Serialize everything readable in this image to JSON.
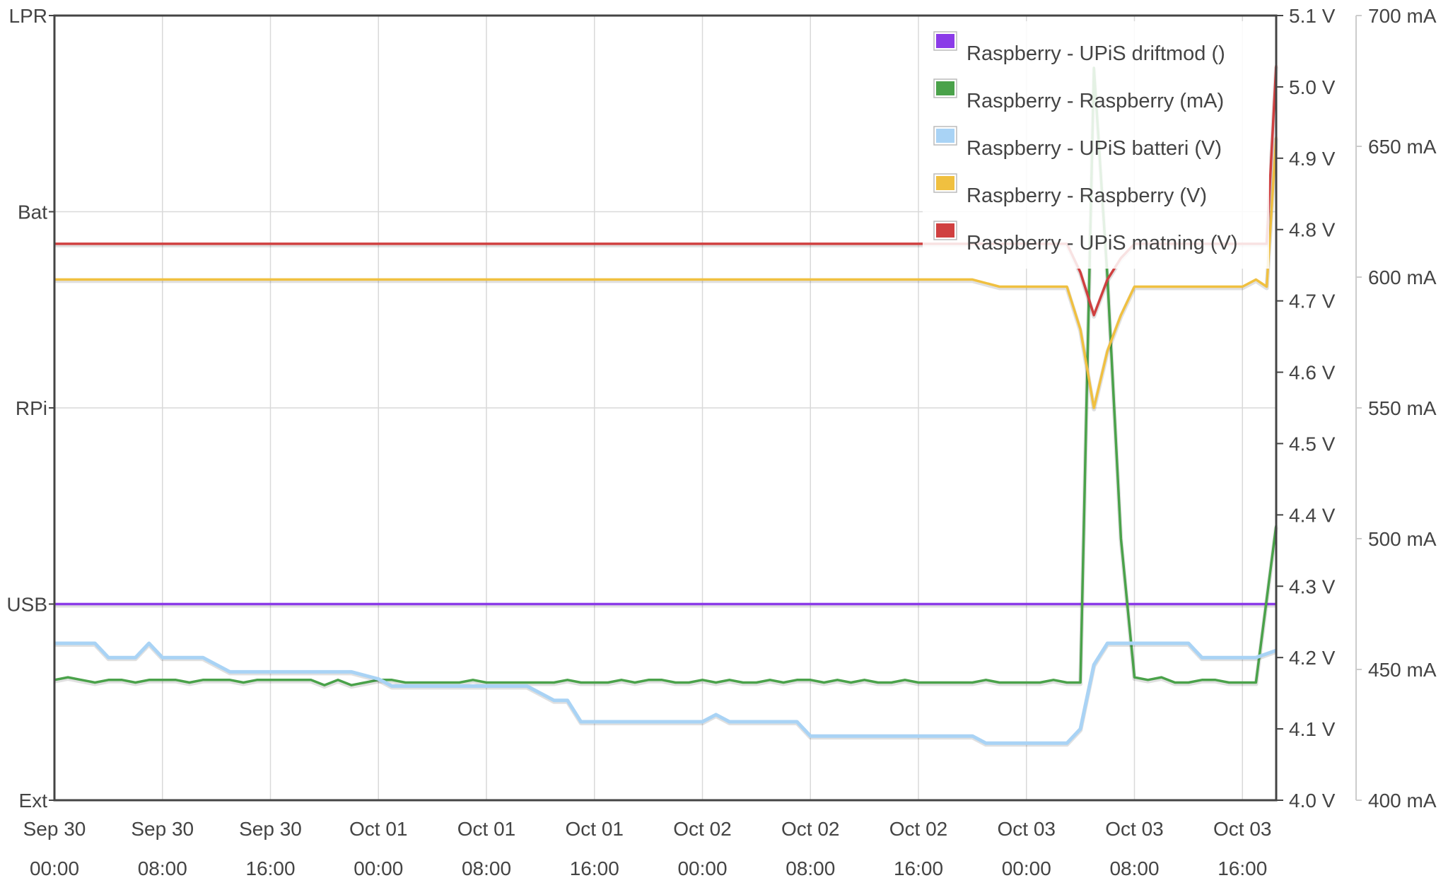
{
  "chart_data": {
    "type": "line",
    "title": "",
    "grid": true,
    "legend_position": "top-right",
    "x_ticks": [
      {
        "date": "Sep 30",
        "time": "00:00",
        "hours": 0
      },
      {
        "date": "Sep 30",
        "time": "08:00",
        "hours": 8
      },
      {
        "date": "Sep 30",
        "time": "16:00",
        "hours": 16
      },
      {
        "date": "Oct 01",
        "time": "00:00",
        "hours": 24
      },
      {
        "date": "Oct 01",
        "time": "08:00",
        "hours": 32
      },
      {
        "date": "Oct 01",
        "time": "16:00",
        "hours": 40
      },
      {
        "date": "Oct 02",
        "time": "00:00",
        "hours": 48
      },
      {
        "date": "Oct 02",
        "time": "08:00",
        "hours": 56
      },
      {
        "date": "Oct 02",
        "time": "16:00",
        "hours": 64
      },
      {
        "date": "Oct 03",
        "time": "00:00",
        "hours": 72
      },
      {
        "date": "Oct 03",
        "time": "08:00",
        "hours": 80
      },
      {
        "date": "Oct 03",
        "time": "16:00",
        "hours": 88
      }
    ],
    "x_range_hours": [
      0,
      90.5
    ],
    "y_axes": {
      "mode": {
        "ticks": [
          "Ext",
          "USB",
          "RPi",
          "Bat",
          "LPR"
        ],
        "range": [
          0,
          4
        ]
      },
      "voltage": {
        "ticks": [
          "4.0 V",
          "4.1 V",
          "4.2 V",
          "4.3 V",
          "4.4 V",
          "4.5 V",
          "4.6 V",
          "4.7 V",
          "4.8 V",
          "4.9 V",
          "5.0 V",
          "5.1 V"
        ],
        "range": [
          4.0,
          5.1
        ]
      },
      "current": {
        "ticks": [
          "400 mA",
          "450 mA",
          "500 mA",
          "550 mA",
          "600 mA",
          "650 mA",
          "700 mA"
        ],
        "range": [
          400,
          700
        ]
      }
    },
    "series": [
      {
        "name": "Raspberry - UPiS driftmod ()",
        "color": "#8b3be8",
        "axis": "mode",
        "step": true,
        "points": [
          [
            0,
            1
          ],
          [
            90.5,
            1
          ]
        ]
      },
      {
        "name": "Raspberry - Raspberry (mA)",
        "color": "#4aa24a",
        "axis": "current",
        "step": false,
        "points": [
          [
            0,
            446
          ],
          [
            1,
            447
          ],
          [
            2,
            446
          ],
          [
            3,
            445
          ],
          [
            4,
            446
          ],
          [
            5,
            446
          ],
          [
            6,
            445
          ],
          [
            7,
            446
          ],
          [
            8,
            446
          ],
          [
            9,
            446
          ],
          [
            10,
            445
          ],
          [
            11,
            446
          ],
          [
            12,
            446
          ],
          [
            13,
            446
          ],
          [
            14,
            445
          ],
          [
            15,
            446
          ],
          [
            16,
            446
          ],
          [
            17,
            446
          ],
          [
            18,
            446
          ],
          [
            19,
            446
          ],
          [
            20,
            444
          ],
          [
            21,
            446
          ],
          [
            22,
            444
          ],
          [
            23,
            445
          ],
          [
            24,
            446
          ],
          [
            25,
            446
          ],
          [
            26,
            445
          ],
          [
            27,
            445
          ],
          [
            28,
            445
          ],
          [
            29,
            445
          ],
          [
            30,
            445
          ],
          [
            31,
            446
          ],
          [
            32,
            445
          ],
          [
            33,
            445
          ],
          [
            34,
            445
          ],
          [
            35,
            445
          ],
          [
            36,
            445
          ],
          [
            37,
            445
          ],
          [
            38,
            446
          ],
          [
            39,
            445
          ],
          [
            40,
            445
          ],
          [
            41,
            445
          ],
          [
            42,
            446
          ],
          [
            43,
            445
          ],
          [
            44,
            446
          ],
          [
            45,
            446
          ],
          [
            46,
            445
          ],
          [
            47,
            445
          ],
          [
            48,
            446
          ],
          [
            49,
            445
          ],
          [
            50,
            446
          ],
          [
            51,
            445
          ],
          [
            52,
            445
          ],
          [
            53,
            446
          ],
          [
            54,
            445
          ],
          [
            55,
            446
          ],
          [
            56,
            446
          ],
          [
            57,
            445
          ],
          [
            58,
            446
          ],
          [
            59,
            445
          ],
          [
            60,
            446
          ],
          [
            61,
            445
          ],
          [
            62,
            445
          ],
          [
            63,
            446
          ],
          [
            64,
            445
          ],
          [
            65,
            445
          ],
          [
            66,
            445
          ],
          [
            67,
            445
          ],
          [
            68,
            445
          ],
          [
            69,
            446
          ],
          [
            70,
            445
          ],
          [
            71,
            445
          ],
          [
            72,
            445
          ],
          [
            73,
            445
          ],
          [
            74,
            446
          ],
          [
            75,
            445
          ],
          [
            76,
            445
          ],
          [
            77,
            680
          ],
          [
            78,
            600
          ],
          [
            79,
            500
          ],
          [
            80,
            447
          ],
          [
            81,
            446
          ],
          [
            82,
            447
          ],
          [
            83,
            445
          ],
          [
            84,
            445
          ],
          [
            85,
            446
          ],
          [
            86,
            446
          ],
          [
            87,
            445
          ],
          [
            88,
            445
          ],
          [
            89,
            445
          ],
          [
            90.5,
            505
          ]
        ]
      },
      {
        "name": "Raspberry - UPiS batteri (V)",
        "color": "#a9d3f5",
        "axis": "voltage",
        "step": false,
        "points": [
          [
            0,
            4.22
          ],
          [
            1,
            4.22
          ],
          [
            2,
            4.22
          ],
          [
            3,
            4.22
          ],
          [
            4,
            4.2
          ],
          [
            5,
            4.2
          ],
          [
            6,
            4.2
          ],
          [
            7,
            4.22
          ],
          [
            8,
            4.2
          ],
          [
            9,
            4.2
          ],
          [
            10,
            4.2
          ],
          [
            11,
            4.2
          ],
          [
            12,
            4.19
          ],
          [
            13,
            4.18
          ],
          [
            14,
            4.18
          ],
          [
            16,
            4.18
          ],
          [
            18,
            4.18
          ],
          [
            20,
            4.18
          ],
          [
            22,
            4.18
          ],
          [
            24,
            4.17
          ],
          [
            25,
            4.16
          ],
          [
            26,
            4.16
          ],
          [
            28,
            4.16
          ],
          [
            30,
            4.16
          ],
          [
            32,
            4.16
          ],
          [
            34,
            4.16
          ],
          [
            35,
            4.16
          ],
          [
            36,
            4.15
          ],
          [
            37,
            4.14
          ],
          [
            38,
            4.14
          ],
          [
            39,
            4.11
          ],
          [
            40,
            4.11
          ],
          [
            42,
            4.11
          ],
          [
            44,
            4.11
          ],
          [
            46,
            4.11
          ],
          [
            48,
            4.11
          ],
          [
            49,
            4.12
          ],
          [
            50,
            4.11
          ],
          [
            52,
            4.11
          ],
          [
            54,
            4.11
          ],
          [
            55,
            4.11
          ],
          [
            56,
            4.09
          ],
          [
            58,
            4.09
          ],
          [
            60,
            4.09
          ],
          [
            62,
            4.09
          ],
          [
            64,
            4.09
          ],
          [
            66,
            4.09
          ],
          [
            68,
            4.09
          ],
          [
            69,
            4.08
          ],
          [
            70,
            4.08
          ],
          [
            72,
            4.08
          ],
          [
            74,
            4.08
          ],
          [
            75,
            4.08
          ],
          [
            76,
            4.1
          ],
          [
            77,
            4.19
          ],
          [
            78,
            4.22
          ],
          [
            80,
            4.22
          ],
          [
            82,
            4.22
          ],
          [
            84,
            4.22
          ],
          [
            85,
            4.2
          ],
          [
            86,
            4.2
          ],
          [
            88,
            4.2
          ],
          [
            89,
            4.2
          ],
          [
            90.5,
            4.21
          ]
        ]
      },
      {
        "name": "Raspberry - Raspberry (V)",
        "color": "#f0c040",
        "axis": "voltage",
        "step": false,
        "points": [
          [
            0,
            4.73
          ],
          [
            1,
            4.73
          ],
          [
            2,
            4.73
          ],
          [
            3,
            4.73
          ],
          [
            4,
            4.73
          ],
          [
            5,
            4.73
          ],
          [
            6,
            4.73
          ],
          [
            7,
            4.73
          ],
          [
            8,
            4.73
          ],
          [
            9,
            4.73
          ],
          [
            10,
            4.73
          ],
          [
            11,
            4.73
          ],
          [
            12,
            4.73
          ],
          [
            13,
            4.73
          ],
          [
            14,
            4.73
          ],
          [
            15,
            4.73
          ],
          [
            16,
            4.73
          ],
          [
            17,
            4.73
          ],
          [
            18,
            4.73
          ],
          [
            19,
            4.73
          ],
          [
            20,
            4.73
          ],
          [
            21,
            4.73
          ],
          [
            22,
            4.73
          ],
          [
            23,
            4.73
          ],
          [
            24,
            4.73
          ],
          [
            26,
            4.73
          ],
          [
            28,
            4.73
          ],
          [
            30,
            4.73
          ],
          [
            32,
            4.73
          ],
          [
            34,
            4.73
          ],
          [
            36,
            4.73
          ],
          [
            38,
            4.73
          ],
          [
            40,
            4.73
          ],
          [
            42,
            4.73
          ],
          [
            44,
            4.73
          ],
          [
            46,
            4.73
          ],
          [
            48,
            4.73
          ],
          [
            50,
            4.73
          ],
          [
            52,
            4.73
          ],
          [
            54,
            4.73
          ],
          [
            56,
            4.73
          ],
          [
            58,
            4.73
          ],
          [
            60,
            4.73
          ],
          [
            62,
            4.73
          ],
          [
            64,
            4.73
          ],
          [
            66,
            4.73
          ],
          [
            68,
            4.73
          ],
          [
            70,
            4.72
          ],
          [
            72,
            4.72
          ],
          [
            74,
            4.72
          ],
          [
            75,
            4.72
          ],
          [
            76,
            4.66
          ],
          [
            77,
            4.55
          ],
          [
            78,
            4.63
          ],
          [
            79,
            4.68
          ],
          [
            80,
            4.72
          ],
          [
            81,
            4.72
          ],
          [
            82,
            4.72
          ],
          [
            83,
            4.72
          ],
          [
            84,
            4.72
          ],
          [
            86,
            4.72
          ],
          [
            88,
            4.72
          ],
          [
            89,
            4.73
          ],
          [
            89.8,
            4.72
          ],
          [
            90.5,
            4.93
          ]
        ]
      },
      {
        "name": "Raspberry - UPiS matning (V)",
        "color": "#d04040",
        "axis": "voltage",
        "step": false,
        "points": [
          [
            0,
            4.78
          ],
          [
            4,
            4.78
          ],
          [
            8,
            4.78
          ],
          [
            12,
            4.78
          ],
          [
            16,
            4.78
          ],
          [
            20,
            4.78
          ],
          [
            24,
            4.78
          ],
          [
            28,
            4.78
          ],
          [
            32,
            4.78
          ],
          [
            36,
            4.78
          ],
          [
            40,
            4.78
          ],
          [
            44,
            4.78
          ],
          [
            48,
            4.78
          ],
          [
            52,
            4.78
          ],
          [
            56,
            4.78
          ],
          [
            60,
            4.78
          ],
          [
            64,
            4.78
          ],
          [
            68,
            4.78
          ],
          [
            72,
            4.78
          ],
          [
            75,
            4.78
          ],
          [
            76,
            4.74
          ],
          [
            77,
            4.68
          ],
          [
            78,
            4.73
          ],
          [
            79,
            4.76
          ],
          [
            80,
            4.78
          ],
          [
            82,
            4.78
          ],
          [
            84,
            4.78
          ],
          [
            86,
            4.78
          ],
          [
            88,
            4.78
          ],
          [
            89.8,
            4.78
          ],
          [
            90.5,
            5.03
          ]
        ]
      }
    ]
  }
}
